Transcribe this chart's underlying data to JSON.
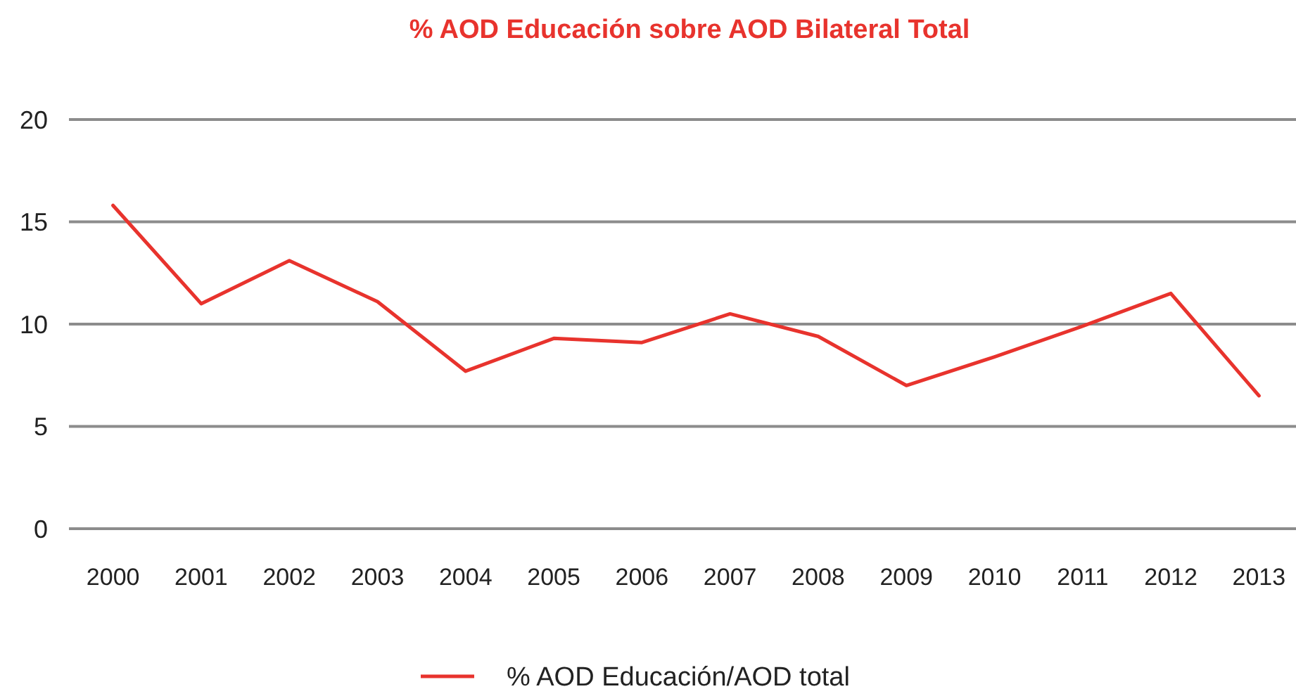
{
  "chart_data": {
    "type": "line",
    "title": "% AOD Educación sobre AOD Bilateral Total",
    "categories": [
      "2000",
      "2001",
      "2002",
      "2003",
      "2004",
      "2005",
      "2006",
      "2007",
      "2008",
      "2009",
      "2010",
      "2011",
      "2012",
      "2013"
    ],
    "series": [
      {
        "name": "% AOD Educación/AOD total",
        "color": "#e8332d",
        "values": [
          15.8,
          11.0,
          13.1,
          11.1,
          7.7,
          9.3,
          9.1,
          10.5,
          9.4,
          7.0,
          8.4,
          9.9,
          11.5,
          6.5
        ]
      }
    ],
    "ylim": [
      0,
      20
    ],
    "yticks": [
      0,
      5,
      10,
      15,
      20
    ],
    "grid": "y",
    "legend": "bottom"
  }
}
